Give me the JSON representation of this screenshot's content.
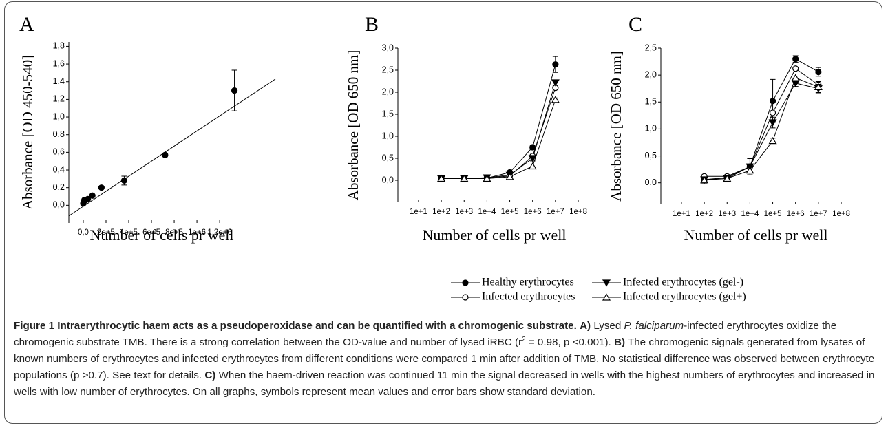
{
  "chart_data": [
    {
      "type": "scatter",
      "panel": "A",
      "ylabel": "Absorbance [OD 450-540]",
      "xlabel": "Number of cells pr well",
      "x": [
        0,
        5000,
        10000,
        20000,
        40000,
        80000,
        160000,
        360000,
        720000,
        1330000
      ],
      "values": [
        0.02,
        0.04,
        0.06,
        0.06,
        0.07,
        0.11,
        0.2,
        0.28,
        0.57,
        1.3
      ],
      "errors": [
        null,
        null,
        null,
        null,
        null,
        null,
        null,
        0.05,
        0.02,
        0.23
      ],
      "color": "#000000",
      "marker": "filled-circle",
      "fit": {
        "x": [
          -127000,
          1690000
        ],
        "values": [
          -0.12,
          1.43
        ]
      },
      "xlim": [
        -127000,
        1690000
      ],
      "ylim": [
        -0.2,
        1.85
      ],
      "xticks": [
        {
          "value": 0,
          "label": "0,0"
        },
        {
          "value": 200000,
          "label": "2e+5"
        },
        {
          "value": 400000,
          "label": "4e+5"
        },
        {
          "value": 600000,
          "label": "6e+5"
        },
        {
          "value": 800000,
          "label": "8e+5"
        },
        {
          "value": 1000000,
          "label": "1e+6"
        },
        {
          "value": 1200000,
          "label": "1,2e+6"
        }
      ],
      "yticks": [
        {
          "value": 0,
          "label": "0,0"
        },
        {
          "value": 0.2,
          "label": "0,2"
        },
        {
          "value": 0.4,
          "label": "0,4"
        },
        {
          "value": 0.6,
          "label": "0,6"
        },
        {
          "value": 0.8,
          "label": "0,8"
        },
        {
          "value": 1.0,
          "label": "1,0"
        },
        {
          "value": 1.2,
          "label": "1,2"
        },
        {
          "value": 1.4,
          "label": "1,4"
        },
        {
          "value": 1.6,
          "label": "1,6"
        },
        {
          "value": 1.8,
          "label": "1,8"
        }
      ]
    },
    {
      "type": "line",
      "panel": "B",
      "ylabel": "Absorbance [OD 650 nm]",
      "xlabel": "Number of cells pr well",
      "xscale": "log",
      "x": [
        100,
        1000,
        10000,
        100000,
        1000000,
        10000000
      ],
      "series": [
        {
          "color": "#000000",
          "marker": "filled-circle",
          "values": [
            0.04,
            0.04,
            0.05,
            0.18,
            0.75,
            2.63
          ],
          "errors": [
            null,
            null,
            null,
            null,
            0.05,
            0.18
          ]
        },
        {
          "color": "#000000",
          "marker": "open-circle",
          "values": [
            0.04,
            0.04,
            0.05,
            0.1,
            0.55,
            2.1
          ],
          "errors": [
            null,
            null,
            null,
            null,
            null,
            0.04
          ]
        },
        {
          "color": "#000000",
          "marker": "filled-triangle-down",
          "values": [
            0.04,
            0.04,
            0.06,
            0.12,
            0.5,
            2.22
          ],
          "errors": [
            null,
            null,
            null,
            null,
            0.06,
            null
          ]
        },
        {
          "color": "#000000",
          "marker": "open-triangle-up",
          "values": [
            0.04,
            0.04,
            0.04,
            0.08,
            0.32,
            1.83
          ],
          "errors": [
            null,
            null,
            null,
            null,
            null,
            0.04
          ]
        }
      ],
      "xlim": [
        1.25,
        200000000
      ],
      "ylim": [
        -0.5,
        3.0
      ],
      "xticks": [
        {
          "value": 10,
          "label": "1e+1"
        },
        {
          "value": 100,
          "label": "1e+2"
        },
        {
          "value": 1000,
          "label": "1e+3"
        },
        {
          "value": 10000,
          "label": "1e+4"
        },
        {
          "value": 100000,
          "label": "1e+5"
        },
        {
          "value": 1000000,
          "label": "1e+6"
        },
        {
          "value": 10000000,
          "label": "1e+7"
        },
        {
          "value": 100000000,
          "label": "1e+8"
        }
      ],
      "yticks": [
        {
          "value": 0,
          "label": "0,0"
        },
        {
          "value": 0.5,
          "label": "0,5"
        },
        {
          "value": 1.0,
          "label": "1,0"
        },
        {
          "value": 1.5,
          "label": "1,5"
        },
        {
          "value": 2.0,
          "label": "2,0"
        },
        {
          "value": 2.5,
          "label": "2,5"
        },
        {
          "value": 3.0,
          "label": "3,0"
        }
      ]
    },
    {
      "type": "line",
      "panel": "C",
      "ylabel": "Absorbance [OD 650 nm]",
      "xlabel": "Number of cells pr well",
      "xscale": "log",
      "x": [
        100,
        1000,
        10000,
        100000,
        1000000,
        10000000
      ],
      "series": [
        {
          "name": "Healthy erythrocytes",
          "color": "#000000",
          "marker": "filled-circle",
          "values": [
            0.06,
            0.1,
            0.3,
            1.52,
            2.3,
            2.06
          ],
          "errors": [
            0.08,
            null,
            null,
            0.4,
            0.06,
            0.08
          ]
        },
        {
          "name": "Infected erythrocytes",
          "color": "#000000",
          "marker": "open-circle",
          "values": [
            0.12,
            0.12,
            0.3,
            1.3,
            2.12,
            1.82
          ],
          "errors": [
            null,
            null,
            0.15,
            null,
            null,
            null
          ]
        },
        {
          "name": "Infected erythrocytes (gel-)",
          "color": "#000000",
          "marker": "filled-triangle-down",
          "values": [
            0.06,
            0.08,
            0.3,
            1.12,
            1.85,
            1.75
          ],
          "errors": [
            null,
            null,
            null,
            0.1,
            0.06,
            0.08
          ]
        },
        {
          "name": "Infected erythrocytes (gel+)",
          "color": "#000000",
          "marker": "open-triangle-up",
          "values": [
            0.05,
            0.08,
            0.23,
            0.78,
            1.95,
            1.78
          ],
          "errors": [
            null,
            null,
            null,
            0.05,
            null,
            0.1
          ]
        }
      ],
      "xlim": [
        1.25,
        200000000
      ],
      "ylim": [
        -0.4,
        2.5
      ],
      "xticks": [
        {
          "value": 10,
          "label": "1e+1"
        },
        {
          "value": 100,
          "label": "1e+2"
        },
        {
          "value": 1000,
          "label": "1e+3"
        },
        {
          "value": 10000,
          "label": "1e+4"
        },
        {
          "value": 100000,
          "label": "1e+5"
        },
        {
          "value": 1000000,
          "label": "1e+6"
        },
        {
          "value": 10000000,
          "label": "1e+7"
        },
        {
          "value": 100000000,
          "label": "1e+8"
        }
      ],
      "yticks": [
        {
          "value": 0,
          "label": "0,0"
        },
        {
          "value": 0.5,
          "label": "0,5"
        },
        {
          "value": 1.0,
          "label": "1,0"
        },
        {
          "value": 1.5,
          "label": "1,5"
        },
        {
          "value": 2.0,
          "label": "2,0"
        },
        {
          "value": 2.5,
          "label": "2,5"
        }
      ]
    }
  ],
  "caption": {
    "parts": [
      {
        "text": "Figure 1 Intraerythrocytic haem acts as a pseudoperoxidase and can be quantified with a chromogenic substrate.",
        "style": "bold"
      },
      {
        "text": " "
      },
      {
        "text": "A)",
        "style": "bold"
      },
      {
        "text": " Lysed "
      },
      {
        "text": "P. falciparum",
        "style": "italic"
      },
      {
        "text": "-infected erythrocytes oxidize the chromogenic substrate TMB. There is a strong correlation between the OD-value and number of lysed iRBC (r"
      },
      {
        "text": "2",
        "style": "sup"
      },
      {
        "text": " = 0.98, p <0.001). "
      },
      {
        "text": "B)",
        "style": "bold"
      },
      {
        "text": " The chromogenic signals generated from lysates of known numbers of erythrocytes and infected erythrocytes from different conditions were compared 1 min after addition of TMB. No statistical difference was observed between erythrocyte populations (p >0.7). See text for details. "
      },
      {
        "text": "C)",
        "style": "bold"
      },
      {
        "text": " When the haem-driven reaction was continued 11 min the signal decreased in wells with the highest numbers of erythrocytes and increased in wells with low number of erythrocytes. On all graphs, symbols represent mean values and error bars show standard deviation."
      }
    ]
  }
}
